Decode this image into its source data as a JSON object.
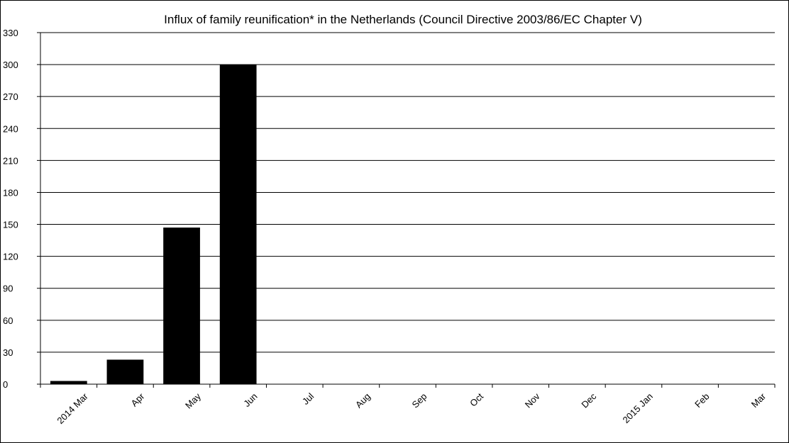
{
  "chart_data": {
    "type": "bar",
    "title": "Influx of family reunification* in the Netherlands (Council Directive 2003/86/EC Chapter V)",
    "categories": [
      "2014 Mar",
      "Apr",
      "May",
      "Jun",
      "Jul",
      "Aug",
      "Sep",
      "Oct",
      "Nov",
      "Dec",
      "2015 Jan",
      "Feb",
      "Mar"
    ],
    "values": [
      3,
      23,
      147,
      300,
      0,
      0,
      0,
      0,
      0,
      0,
      0,
      0,
      0
    ],
    "ylim": [
      0,
      330
    ],
    "yticks": [
      "0",
      "30",
      "60",
      "90",
      "120",
      "150",
      "180",
      "210",
      "240",
      "270",
      "300",
      "330"
    ],
    "grid": true,
    "legend": "none",
    "bar_color": "#000000"
  }
}
